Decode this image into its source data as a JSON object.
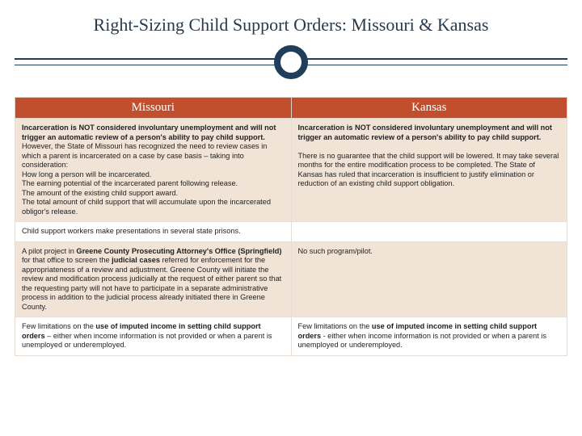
{
  "title": "Right-Sizing Child Support Orders: Missouri & Kansas",
  "colors": {
    "header_bg": "#c14f2d",
    "band_bg": "#f1e3d6",
    "rule": "#1f3e5a"
  },
  "columns": [
    "Missouri",
    "Kansas"
  ],
  "rows": [
    {
      "band": true,
      "mo": "<b>Incarceration is NOT considered involuntary unemployment and will not trigger an automatic review of a person's ability to pay child support.</b> However, the State of Missouri has recognized the need to review cases in which a parent is incarcerated on a case by case basis – taking into consideration:<br>How long a person will be incarcerated.<br>The earning potential of the incarcerated parent following release.<br>The amount of the existing child support award.<br>The total amount of child support that will accumulate upon the incarcerated obligor's release.",
      "ks": "<b>Incarceration is NOT considered involuntary unemployment and will not trigger an automatic review of a person's ability to pay child support.</b><br><br>There is no guarantee that the child support will be lowered. It may take several months for the entire modification process to be completed. The State of Kansas has ruled that incarceration is insufficient to justify elimination or reduction of an existing child support obligation."
    },
    {
      "band": false,
      "mo": "Child support workers make presentations in several state prisons.",
      "ks": ""
    },
    {
      "band": true,
      "mo": "A pilot project in <b>Greene County Prosecuting Attorney's Office (Springfield)</b> for that office to screen the <b>judicial cases</b> referred for enforcement for the appropriateness of a review and adjustment. Greene County will initiate the review and modification process judicially at the request of either parent so that the requesting party will not have to participate in a separate administrative process in addition to the judicial process already initiated there in Greene County.",
      "ks": "No such program/pilot."
    },
    {
      "band": false,
      "mo": "Few limitations on the <b>use of imputed income in setting child support orders</b> – either when income information is not provided or when a parent is unemployed or underemployed.",
      "ks": "Few limitations on the <b>use of imputed income in setting child support orders</b> - either when income information is not provided or when a parent is unemployed or underemployed."
    }
  ]
}
